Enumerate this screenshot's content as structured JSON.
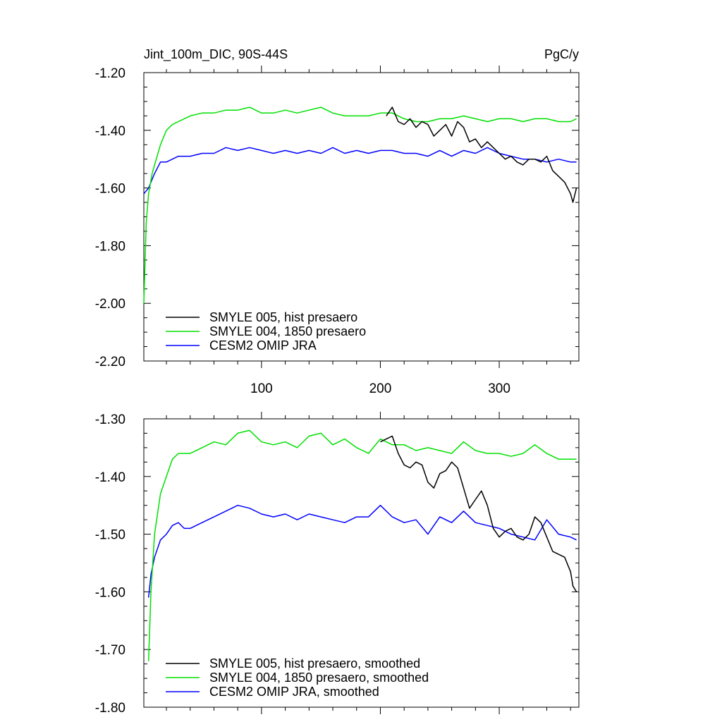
{
  "chart_data": [
    {
      "type": "line",
      "title": "Jint_100m_DIC, 90S-44S",
      "units": "PgC/y",
      "xlim": [
        1,
        367
      ],
      "ylim": [
        -2.2,
        -1.2
      ],
      "xticks": [
        100,
        200,
        300
      ],
      "xtick_labels": [
        "100",
        "200",
        "300"
      ],
      "yticks": [
        -2.2,
        -2.0,
        -1.8,
        -1.6,
        -1.4,
        -1.2
      ],
      "ytick_labels": [
        "-2.20",
        "-2.00",
        "-1.80",
        "-1.60",
        "-1.40",
        "-1.20"
      ],
      "grid": false,
      "legend_position": "bottom-left",
      "series": [
        {
          "name": "SMYLE 005, hist presaero",
          "color": "#000000",
          "x": [
            205,
            210,
            215,
            220,
            225,
            230,
            235,
            240,
            245,
            250,
            255,
            260,
            265,
            270,
            275,
            280,
            285,
            290,
            295,
            300,
            305,
            310,
            315,
            320,
            325,
            330,
            335,
            340,
            345,
            350,
            355,
            360,
            362,
            365
          ],
          "y": [
            -1.35,
            -1.32,
            -1.37,
            -1.38,
            -1.36,
            -1.39,
            -1.37,
            -1.38,
            -1.42,
            -1.4,
            -1.38,
            -1.42,
            -1.37,
            -1.39,
            -1.44,
            -1.43,
            -1.46,
            -1.44,
            -1.46,
            -1.48,
            -1.5,
            -1.49,
            -1.51,
            -1.52,
            -1.5,
            -1.5,
            -1.51,
            -1.49,
            -1.54,
            -1.56,
            -1.58,
            -1.62,
            -1.65,
            -1.6
          ]
        },
        {
          "name": "SMYLE 004, 1850 presaero",
          "color": "#00e000",
          "x": [
            1,
            3,
            5,
            8,
            10,
            15,
            20,
            25,
            30,
            40,
            50,
            60,
            70,
            80,
            90,
            100,
            110,
            120,
            130,
            140,
            150,
            160,
            170,
            180,
            190,
            200,
            210,
            220,
            230,
            240,
            250,
            260,
            270,
            280,
            290,
            300,
            310,
            320,
            330,
            340,
            350,
            360,
            365
          ],
          "y": [
            -2.0,
            -1.72,
            -1.62,
            -1.55,
            -1.52,
            -1.45,
            -1.4,
            -1.38,
            -1.37,
            -1.35,
            -1.34,
            -1.34,
            -1.33,
            -1.33,
            -1.32,
            -1.34,
            -1.34,
            -1.33,
            -1.34,
            -1.33,
            -1.32,
            -1.34,
            -1.35,
            -1.35,
            -1.35,
            -1.34,
            -1.34,
            -1.36,
            -1.37,
            -1.37,
            -1.36,
            -1.36,
            -1.35,
            -1.36,
            -1.37,
            -1.36,
            -1.36,
            -1.37,
            -1.36,
            -1.36,
            -1.37,
            -1.37,
            -1.36
          ]
        },
        {
          "name": "CESM2 OMIP JRA",
          "color": "#0000ff",
          "x": [
            1,
            5,
            10,
            15,
            20,
            25,
            30,
            40,
            50,
            60,
            70,
            80,
            90,
            100,
            110,
            120,
            130,
            140,
            150,
            160,
            170,
            180,
            190,
            200,
            210,
            220,
            230,
            240,
            250,
            260,
            270,
            280,
            290,
            300,
            310,
            320,
            330,
            340,
            350,
            360,
            365
          ],
          "y": [
            -1.62,
            -1.6,
            -1.55,
            -1.51,
            -1.51,
            -1.5,
            -1.49,
            -1.49,
            -1.48,
            -1.48,
            -1.46,
            -1.47,
            -1.46,
            -1.47,
            -1.48,
            -1.47,
            -1.48,
            -1.47,
            -1.48,
            -1.46,
            -1.48,
            -1.47,
            -1.48,
            -1.47,
            -1.47,
            -1.48,
            -1.48,
            -1.49,
            -1.47,
            -1.49,
            -1.47,
            -1.48,
            -1.46,
            -1.48,
            -1.49,
            -1.5,
            -1.5,
            -1.51,
            -1.5,
            -1.51,
            -1.51
          ]
        }
      ]
    },
    {
      "type": "line",
      "xlim": [
        1,
        367
      ],
      "ylim": [
        -1.8,
        -1.3
      ],
      "xticks": [
        100,
        200,
        300
      ],
      "yticks": [
        -1.8,
        -1.7,
        -1.6,
        -1.5,
        -1.4,
        -1.3
      ],
      "ytick_labels": [
        "-1.80",
        "-1.70",
        "-1.60",
        "-1.50",
        "-1.40",
        "-1.30"
      ],
      "grid": false,
      "legend_position": "bottom-left",
      "series": [
        {
          "name": "SMYLE 005, hist presaero, smoothed",
          "color": "#000000",
          "x": [
            200,
            205,
            210,
            215,
            220,
            225,
            230,
            235,
            240,
            245,
            250,
            255,
            260,
            265,
            270,
            275,
            280,
            285,
            290,
            295,
            300,
            305,
            310,
            315,
            320,
            325,
            330,
            335,
            340,
            345,
            350,
            355,
            360,
            362,
            365
          ],
          "y": [
            -1.34,
            -1.335,
            -1.33,
            -1.36,
            -1.38,
            -1.385,
            -1.375,
            -1.38,
            -1.41,
            -1.42,
            -1.395,
            -1.39,
            -1.375,
            -1.385,
            -1.42,
            -1.455,
            -1.44,
            -1.425,
            -1.45,
            -1.49,
            -1.505,
            -1.495,
            -1.49,
            -1.505,
            -1.51,
            -1.5,
            -1.47,
            -1.48,
            -1.505,
            -1.53,
            -1.535,
            -1.54,
            -1.565,
            -1.59,
            -1.6
          ]
        },
        {
          "name": "SMYLE 004, 1850 presaero, smoothed",
          "color": "#00e000",
          "x": [
            5,
            7,
            10,
            15,
            20,
            25,
            30,
            35,
            40,
            50,
            60,
            70,
            80,
            90,
            100,
            110,
            120,
            130,
            140,
            150,
            160,
            170,
            180,
            190,
            200,
            210,
            220,
            230,
            240,
            250,
            260,
            270,
            280,
            290,
            300,
            310,
            320,
            330,
            340,
            350,
            360,
            365
          ],
          "y": [
            -1.72,
            -1.6,
            -1.5,
            -1.43,
            -1.4,
            -1.37,
            -1.36,
            -1.36,
            -1.36,
            -1.35,
            -1.34,
            -1.345,
            -1.325,
            -1.32,
            -1.34,
            -1.345,
            -1.34,
            -1.35,
            -1.33,
            -1.325,
            -1.345,
            -1.335,
            -1.35,
            -1.36,
            -1.335,
            -1.345,
            -1.345,
            -1.355,
            -1.35,
            -1.355,
            -1.36,
            -1.34,
            -1.355,
            -1.36,
            -1.36,
            -1.365,
            -1.36,
            -1.345,
            -1.36,
            -1.37,
            -1.37,
            -1.37
          ]
        },
        {
          "name": "CESM2 OMIP JRA, smoothed",
          "color": "#0000ff",
          "x": [
            5,
            7,
            10,
            15,
            20,
            25,
            30,
            35,
            40,
            50,
            60,
            70,
            80,
            90,
            100,
            110,
            120,
            130,
            140,
            150,
            160,
            170,
            180,
            190,
            200,
            210,
            220,
            230,
            240,
            250,
            260,
            270,
            280,
            290,
            300,
            310,
            320,
            330,
            340,
            350,
            360,
            365
          ],
          "y": [
            -1.61,
            -1.57,
            -1.54,
            -1.51,
            -1.5,
            -1.485,
            -1.48,
            -1.49,
            -1.49,
            -1.48,
            -1.47,
            -1.46,
            -1.45,
            -1.455,
            -1.465,
            -1.47,
            -1.465,
            -1.475,
            -1.465,
            -1.47,
            -1.475,
            -1.48,
            -1.47,
            -1.47,
            -1.45,
            -1.47,
            -1.48,
            -1.475,
            -1.5,
            -1.47,
            -1.48,
            -1.46,
            -1.48,
            -1.485,
            -1.49,
            -1.5,
            -1.505,
            -1.51,
            -1.475,
            -1.5,
            -1.505,
            -1.51
          ]
        }
      ]
    }
  ]
}
